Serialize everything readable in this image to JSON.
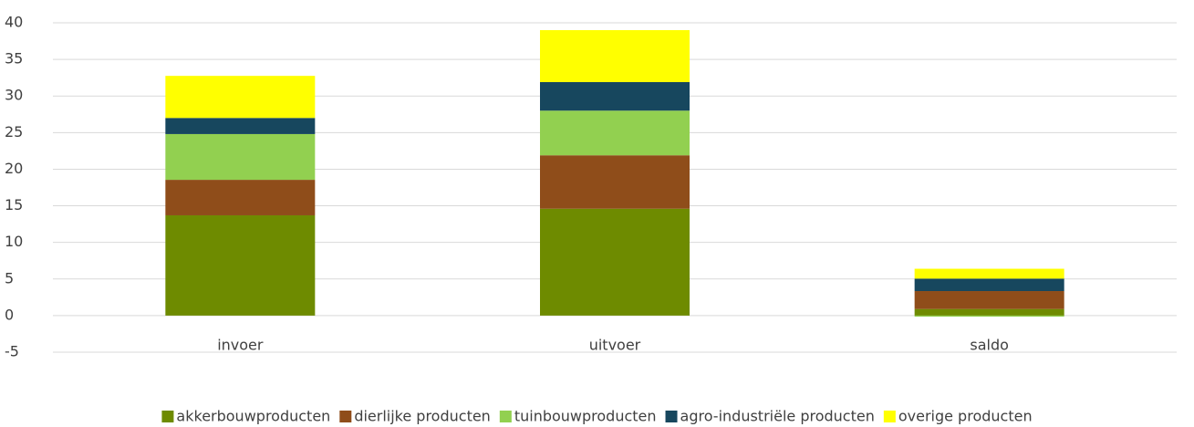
{
  "chart_data": {
    "type": "stacked_bar",
    "categories": [
      "invoer",
      "uitvoer",
      "saldo"
    ],
    "series": [
      {
        "name": "akkerbouwproducten",
        "color": "#6e8b00",
        "values": [
          13.7,
          14.6,
          0.9
        ]
      },
      {
        "name": "dierlijke producten",
        "color": "#8f4d1a",
        "values": [
          4.85,
          7.3,
          2.45
        ]
      },
      {
        "name": "tuinbouwproducten",
        "color": "#92d050",
        "values": [
          6.25,
          6.1,
          -0.15
        ]
      },
      {
        "name": "agro-industriële producten",
        "color": "#17475e",
        "values": [
          2.2,
          3.9,
          1.7
        ]
      },
      {
        "name": "overige producten",
        "color": "#ffff00",
        "values": [
          5.75,
          7.1,
          1.35
        ]
      }
    ],
    "ylim": [
      -5,
      40
    ],
    "yticks": [
      -5,
      0,
      5,
      10,
      15,
      20,
      25,
      30,
      35,
      40
    ],
    "grid": true,
    "legend": "bottom"
  }
}
